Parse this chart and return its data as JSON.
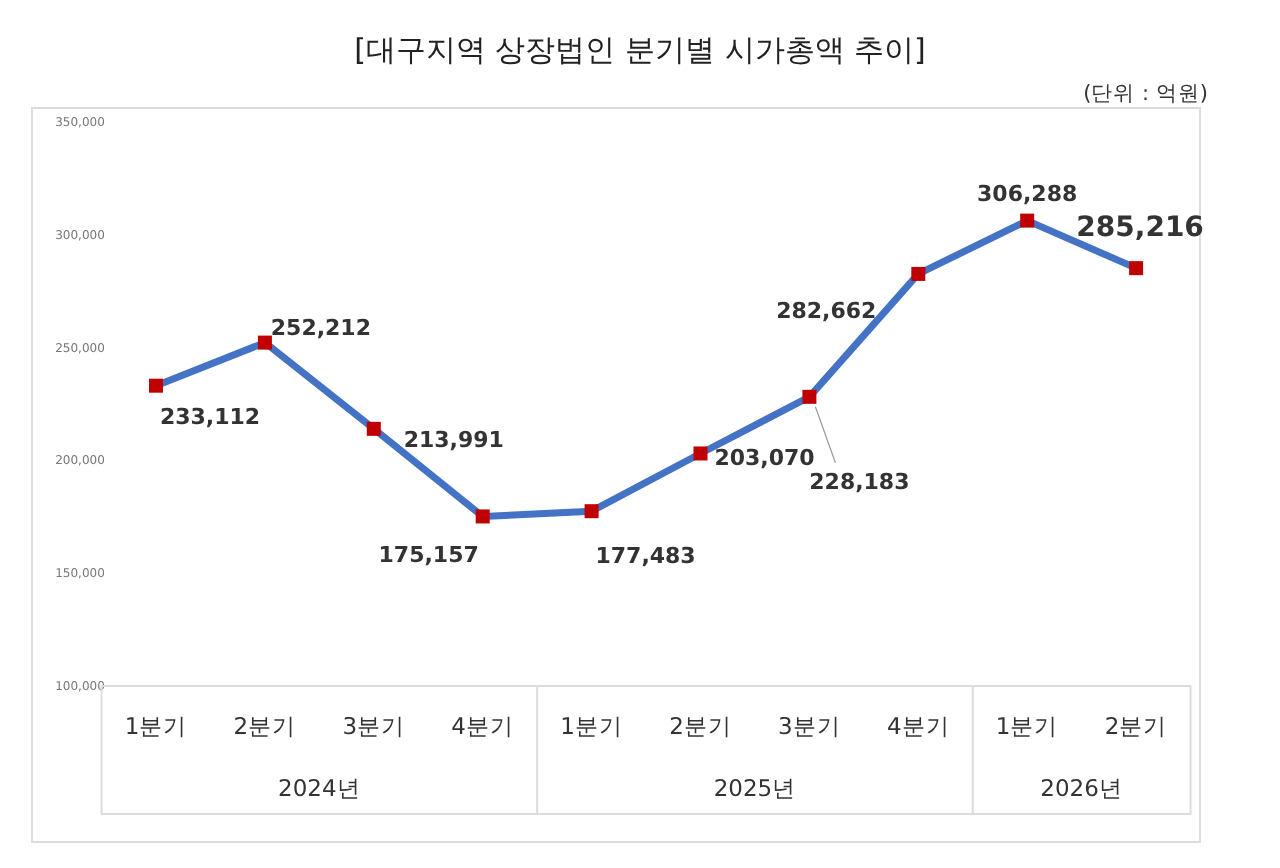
{
  "chart_data": {
    "type": "line",
    "title": "[대구지역 상장법인 분기별 시가총액 추이]",
    "subtitle": "(단위 : 억원)",
    "categories": [
      "1분기",
      "2분기",
      "3분기",
      "4분기",
      "1분기",
      "2분기",
      "3분기",
      "4분기",
      "1분기",
      "2분기"
    ],
    "annotations": [
      "2024년",
      "2025년",
      "2026년"
    ],
    "series": [
      {
        "color": "#4472c4",
        "values": [
          233112,
          252212,
          213991,
          175157,
          177483,
          203070,
          228183,
          282662,
          306288,
          285216
        ],
        "value_labels": [
          "233,112",
          "252,212",
          "213,991",
          "175,157",
          "177,483",
          "203,070",
          "228,183",
          "282,662",
          "306,288",
          "285,216"
        ]
      }
    ],
    "ylim": [
      100000,
      350000
    ],
    "yticks": [
      {
        "value": 100000,
        "label": "100,000"
      },
      {
        "value": 150000,
        "label": "150,000"
      },
      {
        "value": 200000,
        "label": "200,000"
      },
      {
        "value": 250000,
        "label": "250,000"
      },
      {
        "value": 300000,
        "label": "300,000"
      },
      {
        "value": 350000,
        "label": "350,000"
      }
    ],
    "marker": "square",
    "line_style": "solid",
    "grid": false
  }
}
